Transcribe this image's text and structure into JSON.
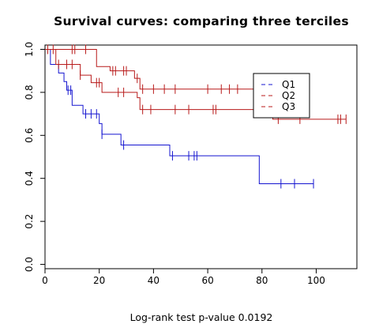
{
  "title": "Survival curves: comparing three terciles",
  "footnote": "Log-rank test p-value  0.0192",
  "chart_data": {
    "type": "line",
    "title": "Survival curves: comparing three terciles",
    "xlabel": "",
    "ylabel": "",
    "xlim": [
      0,
      115
    ],
    "ylim": [
      -0.02,
      1.02
    ],
    "x_ticks": [
      0,
      20,
      40,
      60,
      80,
      100
    ],
    "y_ticks": [
      0.0,
      0.2,
      0.4,
      0.6,
      0.8,
      1.0
    ],
    "x_tick_labels": [
      "0",
      "20",
      "40",
      "60",
      "80",
      "100"
    ],
    "y_tick_labels": [
      "0.0",
      "0.2",
      "0.4",
      "0.6",
      "0.8",
      "1.0"
    ],
    "legend_position": "top-right",
    "series": [
      {
        "name": "Q1",
        "color": "#1515d0",
        "steps": [
          [
            0,
            1.0
          ],
          [
            2,
            0.93
          ],
          [
            5,
            0.89
          ],
          [
            7,
            0.85
          ],
          [
            8,
            0.81
          ],
          [
            10,
            0.74
          ],
          [
            14,
            0.7
          ],
          [
            20,
            0.655
          ],
          [
            21,
            0.605
          ],
          [
            28,
            0.555
          ],
          [
            46,
            0.505
          ],
          [
            79,
            0.375
          ],
          [
            99,
            0.375
          ]
        ],
        "censored": [
          8.5,
          9.5,
          15,
          17,
          19,
          21,
          29,
          47,
          53,
          55,
          56,
          87,
          92,
          99
        ]
      },
      {
        "name": "Q2",
        "color": "#b81a1a",
        "steps": [
          [
            0,
            1.0
          ],
          [
            19,
            0.92
          ],
          [
            24,
            0.9
          ],
          [
            33,
            0.865
          ],
          [
            35,
            0.815
          ],
          [
            79,
            0.815
          ]
        ],
        "censored": [
          1,
          3,
          10,
          11,
          15,
          25,
          26,
          29,
          30,
          34,
          36,
          40,
          44,
          48,
          60,
          65,
          68,
          71
        ]
      },
      {
        "name": "Q3",
        "color": "#b81a1a",
        "steps": [
          [
            0,
            1.0
          ],
          [
            4,
            0.93
          ],
          [
            13,
            0.88
          ],
          [
            17,
            0.845
          ],
          [
            21,
            0.8
          ],
          [
            34,
            0.775
          ],
          [
            35,
            0.72
          ],
          [
            79,
            0.72
          ],
          [
            84,
            0.675
          ],
          [
            111,
            0.675
          ]
        ],
        "censored": [
          5,
          8,
          10,
          13,
          19,
          20,
          27,
          29,
          36,
          39,
          48,
          53,
          62,
          63,
          86,
          94,
          108,
          109,
          111
        ]
      }
    ]
  }
}
